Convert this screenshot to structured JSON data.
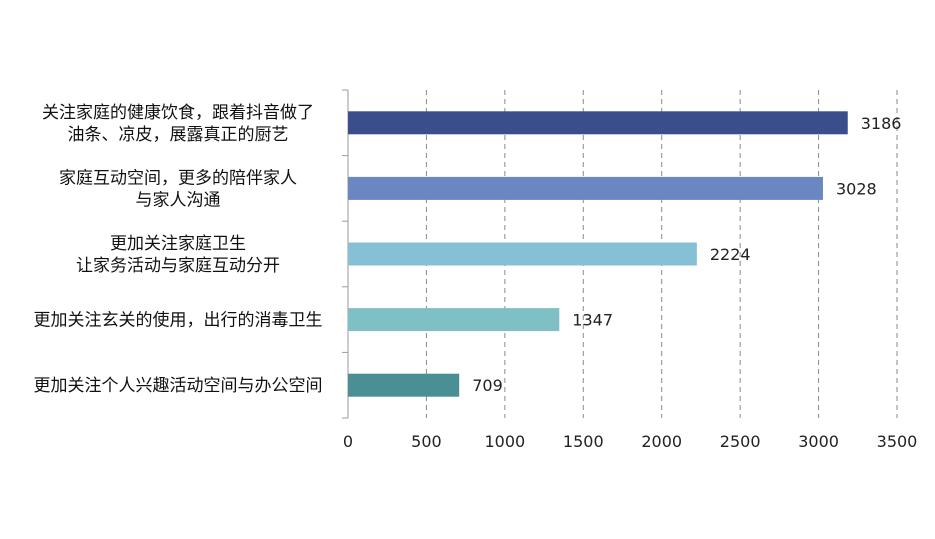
{
  "chart_data": {
    "type": "bar",
    "orientation": "horizontal",
    "categories": [
      "关注家庭的健康饮食，跟着抖音做了\n油条、凉皮，展露真正的厨艺",
      "家庭互动空间，更多的陪伴家人\n与家人沟通",
      "更加关注家庭卫生\n让家务活动与家庭互动分开",
      "更加关注玄关的使用，出行的消毒卫生",
      "更加关注个人兴趣活动空间与办公空间"
    ],
    "values": [
      3186,
      3028,
      2224,
      1347,
      709
    ],
    "data_labels": [
      "3186",
      "3028",
      "2224",
      "1347",
      "709"
    ],
    "bar_colors": [
      "#3B4E8C",
      "#6A87C2",
      "#86C0D4",
      "#7EC0C4",
      "#4A8F94"
    ],
    "xlim": [
      0,
      3500
    ],
    "x_ticks": [
      "0",
      "500",
      "1000",
      "1500",
      "2000",
      "2500",
      "3000",
      "3500"
    ],
    "grid": "vertical dashed",
    "legend": "none"
  }
}
